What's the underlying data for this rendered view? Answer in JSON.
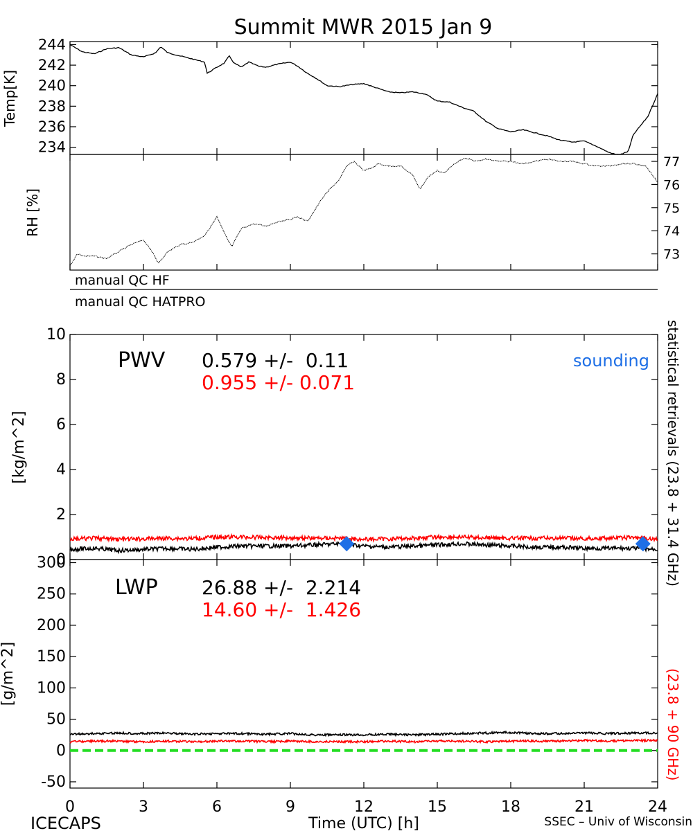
{
  "header": {
    "title": "Summit MWR 2015 Jan  9"
  },
  "footer": {
    "left": "ICECAPS",
    "center": "Time (UTC) [h]",
    "right": "SSEC – Univ of Wisconsin"
  },
  "right_labels": {
    "black": "statistical retrievals (23.8 + 31.4 GHz)",
    "red": "(23.8 + 90 GHz)"
  },
  "qc": {
    "hf": "manual QC HF",
    "hatpro": "manual QC HATPRO"
  },
  "pwv": {
    "label": "PWV",
    "black_stat": "0.579 +/-  0.11",
    "red_stat": "0.955 +/- 0.071",
    "sounding_label": "sounding"
  },
  "lwp": {
    "label": "LWP",
    "black_stat": "26.88 +/-  2.214",
    "red_stat": "14.60 +/-  1.426"
  },
  "colors": {
    "black": "#000000",
    "red": "#ff0000",
    "blue": "#1e6fe6",
    "green": "#22dd22"
  },
  "chart_data": [
    {
      "type": "line",
      "ylabel": "Temp[K]",
      "xlim": [
        0,
        24
      ],
      "ylim": [
        233.3,
        244.3
      ],
      "yticks": [
        234,
        236,
        238,
        240,
        242,
        244
      ],
      "series": [
        {
          "color": "#000000",
          "x": [
            0,
            0.5,
            1,
            1.5,
            2,
            2.5,
            3,
            3.5,
            3.7,
            4,
            4.5,
            5,
            5.5,
            5.6,
            6,
            6.3,
            6.5,
            6.7,
            7,
            7.3,
            7.7,
            8,
            8.5,
            9,
            9.3,
            9.7,
            10,
            10.5,
            11,
            11.5,
            12,
            12.5,
            13,
            13.5,
            14,
            14.5,
            15,
            15.5,
            16,
            16.5,
            17,
            17.5,
            18,
            18.5,
            19,
            19.5,
            20,
            20.5,
            21,
            21.5,
            22,
            22.3,
            22.5,
            22.8,
            23,
            23.3,
            23.6,
            24
          ],
          "y": [
            244,
            243.3,
            243.1,
            243.6,
            243.7,
            243.0,
            242.8,
            243.2,
            243.8,
            243.2,
            242.9,
            242.6,
            242.3,
            241.2,
            241.8,
            242.2,
            242.9,
            242.2,
            241.8,
            242.3,
            241.9,
            241.8,
            242.1,
            242.3,
            241.9,
            241.2,
            240.8,
            240.0,
            239.9,
            240.1,
            240.2,
            239.8,
            239.4,
            239.3,
            239.4,
            239.2,
            238.5,
            238.4,
            237.9,
            237.5,
            236.5,
            235.8,
            235.5,
            235.7,
            235.4,
            235.1,
            234.7,
            234.5,
            234.6,
            234.1,
            233.5,
            233.3,
            233.3,
            233.6,
            235.2,
            236.1,
            237.0,
            239.2
          ]
        }
      ]
    },
    {
      "type": "scatter",
      "ylabel": "RH [%]",
      "xlim": [
        0,
        24
      ],
      "ylim": [
        72.3,
        77.3
      ],
      "yticks": [
        73,
        74,
        75,
        76,
        77
      ],
      "series": [
        {
          "color": "#000000",
          "x": [
            0,
            0.3,
            0.6,
            1,
            1.5,
            2,
            2.5,
            3,
            3.3,
            3.6,
            4,
            4.5,
            5,
            5.5,
            5.7,
            6,
            6.3,
            6.6,
            7,
            7.5,
            8,
            8.5,
            9,
            9.3,
            9.7,
            10,
            10.3,
            10.7,
            11,
            11.3,
            11.6,
            12,
            12.3,
            12.6,
            13,
            13.5,
            14,
            14.3,
            14.6,
            15,
            15.3,
            15.7,
            16,
            16.3,
            16.6,
            17,
            17.5,
            18,
            18.5,
            19,
            19.5,
            20,
            20.5,
            21,
            21.5,
            22,
            22.5,
            23,
            23.5,
            24
          ],
          "y": [
            72.5,
            73.0,
            72.9,
            72.9,
            72.8,
            73.1,
            73.4,
            73.6,
            73.2,
            72.6,
            73.1,
            73.4,
            73.5,
            73.8,
            74.1,
            74.6,
            73.9,
            73.3,
            74.1,
            74.3,
            74.2,
            74.4,
            74.5,
            74.6,
            74.4,
            74.9,
            75.4,
            75.9,
            76.2,
            76.8,
            77.0,
            76.6,
            76.7,
            76.9,
            76.8,
            76.8,
            76.4,
            75.8,
            76.3,
            76.6,
            76.5,
            76.9,
            77.1,
            77.1,
            77.0,
            77.1,
            77.0,
            77.0,
            76.9,
            77.0,
            77.1,
            77.0,
            77.0,
            76.9,
            76.8,
            76.8,
            76.9,
            76.9,
            76.8,
            76.1
          ]
        }
      ]
    },
    {
      "type": "line",
      "ylabel": "[kg/m^2]",
      "xlim": [
        0,
        24
      ],
      "ylim": [
        0,
        10
      ],
      "yticks": [
        0,
        2,
        4,
        6,
        8,
        10
      ],
      "series": [
        {
          "name": "",
          "color": "#000000",
          "x": [
            0,
            1,
            2,
            3,
            4,
            5,
            6,
            7,
            8,
            9,
            10,
            11,
            12,
            13,
            14,
            15,
            16,
            17,
            18,
            19,
            20,
            21,
            22,
            23,
            24
          ],
          "y": [
            0.45,
            0.5,
            0.4,
            0.45,
            0.5,
            0.45,
            0.55,
            0.6,
            0.6,
            0.6,
            0.65,
            0.7,
            0.6,
            0.55,
            0.6,
            0.65,
            0.7,
            0.65,
            0.6,
            0.55,
            0.55,
            0.5,
            0.5,
            0.5,
            0.45
          ]
        },
        {
          "name": "",
          "color": "#ff0000",
          "x": [
            0,
            1,
            2,
            3,
            4,
            5,
            6,
            7,
            8,
            9,
            10,
            11,
            12,
            13,
            14,
            15,
            16,
            17,
            18,
            19,
            20,
            21,
            22,
            23,
            24
          ],
          "y": [
            0.9,
            0.95,
            0.9,
            0.92,
            0.95,
            0.93,
            1.0,
            1.0,
            0.98,
            0.97,
            0.95,
            0.95,
            0.9,
            0.92,
            0.95,
            1.0,
            1.0,
            0.97,
            0.95,
            0.95,
            0.95,
            0.93,
            0.95,
            0.98,
            0.9
          ]
        },
        {
          "name": "sounding",
          "color": "#1e6fe6",
          "marker": "diamond",
          "x": [
            11.3,
            23.4
          ],
          "y": [
            0.7,
            0.7
          ]
        }
      ]
    },
    {
      "type": "line",
      "ylabel": "[g/m^2]",
      "xlabel": "Time (UTC) [h]",
      "xlim": [
        0,
        24
      ],
      "xticks": [
        0,
        3,
        6,
        9,
        12,
        15,
        18,
        21,
        24
      ],
      "ylim": [
        -60,
        305
      ],
      "yticks": [
        -50,
        0,
        50,
        100,
        150,
        200,
        250,
        300
      ],
      "series": [
        {
          "color": "#000000",
          "x": [
            0,
            1,
            2,
            3,
            4,
            5,
            6,
            7,
            8,
            9,
            10,
            11,
            12,
            13,
            14,
            15,
            16,
            17,
            18,
            19,
            20,
            21,
            22,
            23,
            24
          ],
          "y": [
            26,
            27,
            28,
            27,
            28,
            26,
            27,
            27,
            26,
            27,
            25,
            25,
            25,
            26,
            25,
            26,
            27,
            28,
            29,
            27,
            27,
            28,
            27,
            28,
            28
          ]
        },
        {
          "color": "#ff0000",
          "x": [
            0,
            1,
            2,
            3,
            4,
            5,
            6,
            7,
            8,
            9,
            10,
            11,
            12,
            13,
            14,
            15,
            16,
            17,
            18,
            19,
            20,
            21,
            22,
            23,
            24
          ],
          "y": [
            14,
            15,
            15,
            14,
            15,
            14,
            15,
            15,
            14,
            15,
            14,
            14,
            14,
            15,
            14,
            15,
            15,
            14,
            15,
            15,
            15,
            16,
            15,
            16,
            16
          ]
        },
        {
          "color": "#22dd22",
          "style": "dashed",
          "x": [
            0,
            24
          ],
          "y": [
            0,
            0
          ]
        }
      ]
    }
  ]
}
